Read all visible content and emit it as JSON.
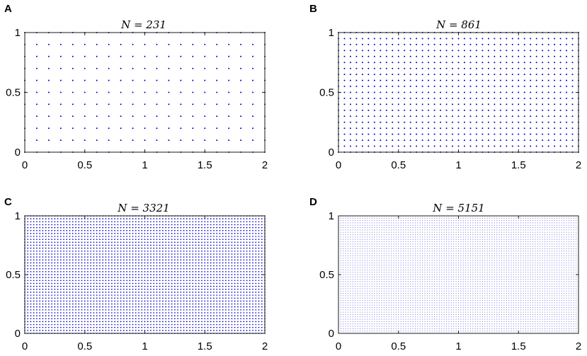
{
  "figure": {
    "panels": [
      {
        "letter": "A",
        "title": "N = 231"
      },
      {
        "letter": "B",
        "title": "N = 861"
      },
      {
        "letter": "C",
        "title": "N = 3321"
      },
      {
        "letter": "D",
        "title": "N = 5151"
      }
    ]
  },
  "chart_data": [
    {
      "type": "scatter",
      "title": "N = 231",
      "panel_label": "A",
      "grid_points": {
        "nx": 21,
        "ny": 11,
        "x_range": [
          0,
          2
        ],
        "y_range": [
          0,
          1
        ],
        "spacing": 0.1
      },
      "xlim": [
        0,
        2
      ],
      "ylim": [
        0,
        1
      ],
      "xticks": [
        0,
        0.5,
        1,
        1.5,
        2
      ],
      "xtick_labels": [
        "0",
        "0.5",
        "1",
        "1.5",
        "2"
      ],
      "yticks": [
        0,
        0.5,
        1
      ],
      "ytick_labels": [
        "0",
        "0.5",
        "1"
      ],
      "color": "#0000cc",
      "grid": false
    },
    {
      "type": "scatter",
      "title": "N = 861",
      "panel_label": "B",
      "grid_points": {
        "nx": 41,
        "ny": 21,
        "x_range": [
          0,
          2
        ],
        "y_range": [
          0,
          1
        ],
        "spacing": 0.05
      },
      "xlim": [
        0,
        2
      ],
      "ylim": [
        0,
        1
      ],
      "xticks": [
        0,
        0.5,
        1,
        1.5,
        2
      ],
      "xtick_labels": [
        "0",
        "0.5",
        "1",
        "1.5",
        "2"
      ],
      "yticks": [
        0,
        0.5,
        1
      ],
      "ytick_labels": [
        "0",
        "0.5",
        "1"
      ],
      "color": "#0000cc",
      "grid": false
    },
    {
      "type": "scatter",
      "title": "N = 3321",
      "panel_label": "C",
      "grid_points": {
        "nx": 81,
        "ny": 41,
        "x_range": [
          0,
          2
        ],
        "y_range": [
          0,
          1
        ],
        "spacing": 0.025
      },
      "xlim": [
        0,
        2
      ],
      "ylim": [
        0,
        1
      ],
      "xticks": [
        0,
        0.5,
        1,
        1.5,
        2
      ],
      "xtick_labels": [
        "0",
        "0.5",
        "1",
        "1.5",
        "2"
      ],
      "yticks": [
        0,
        0.5,
        1
      ],
      "ytick_labels": [
        "0",
        "0.5",
        "1"
      ],
      "color": "#0000cc",
      "grid": false
    },
    {
      "type": "scatter",
      "title": "N = 5151",
      "panel_label": "D",
      "grid_points": {
        "nx": 101,
        "ny": 51,
        "x_range": [
          0,
          2
        ],
        "y_range": [
          0,
          1
        ],
        "spacing": 0.02
      },
      "xlim": [
        0,
        2
      ],
      "ylim": [
        0,
        1
      ],
      "xticks": [
        0,
        0.5,
        1,
        1.5,
        2
      ],
      "xtick_labels": [
        "0",
        "0.5",
        "1",
        "1.5",
        "2"
      ],
      "yticks": [
        0,
        0.5,
        1
      ],
      "ytick_labels": [
        "0",
        "0.5",
        "1"
      ],
      "color": "#6666dd",
      "grid": false
    }
  ]
}
